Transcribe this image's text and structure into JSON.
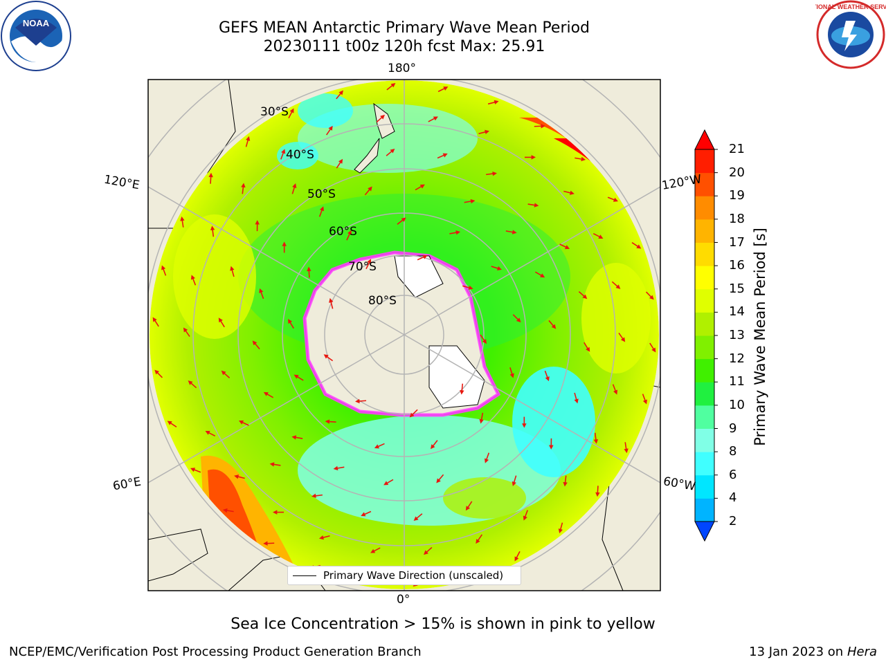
{
  "header": {
    "title_line1": "GEFS MEAN Antarctic Primary Wave Mean Period",
    "title_line2": "20230111 t00z 120h fcst   Max: 25.91"
  },
  "logos": {
    "left": "noaa-logo",
    "right": "nws-logo",
    "left_text": "NOAA",
    "right_text": "NATIONAL WEATHER SERVICE"
  },
  "map": {
    "projection": "south-polar-stereographic",
    "longitude_labels": {
      "top": "180°",
      "bottom": "0°",
      "upper_left": "120°E",
      "upper_right": "120°W",
      "lower_left": "60°E",
      "lower_right": "60°W"
    },
    "latitude_labels": [
      "30°S",
      "40°S",
      "50°S",
      "60°S",
      "70°S",
      "80°S"
    ],
    "legend_text": "Primary Wave Direction (unscaled)",
    "colors": {
      "land": "#efecdb",
      "arrow": "#e8170f",
      "grid": "#b4b4b4",
      "sea_ice": "#ff40ff"
    }
  },
  "colorbar": {
    "label": "Primary Wave Mean Period [s]",
    "ticks": [
      "2",
      "4",
      "6",
      "8",
      "9",
      "10",
      "11",
      "12",
      "13",
      "14",
      "15",
      "16",
      "17",
      "18",
      "19",
      "20",
      "21"
    ],
    "colors": [
      "#0046ff",
      "#00b4ff",
      "#00e6ff",
      "#40ffff",
      "#80ffe6",
      "#50ffa0",
      "#20f040",
      "#40f000",
      "#80f000",
      "#b0f000",
      "#e0ff00",
      "#ffff00",
      "#ffdc00",
      "#ffb400",
      "#ff8c00",
      "#ff5000",
      "#ff1e00",
      "#ff0000"
    ]
  },
  "note": "Sea Ice Concentration > 15% is shown in pink to yellow",
  "footer": {
    "left": "NCEP/EMC/Verification Post Processing Product Generation Branch",
    "right_prefix": "13 Jan 2023 on",
    "right_machine": "Hera"
  }
}
